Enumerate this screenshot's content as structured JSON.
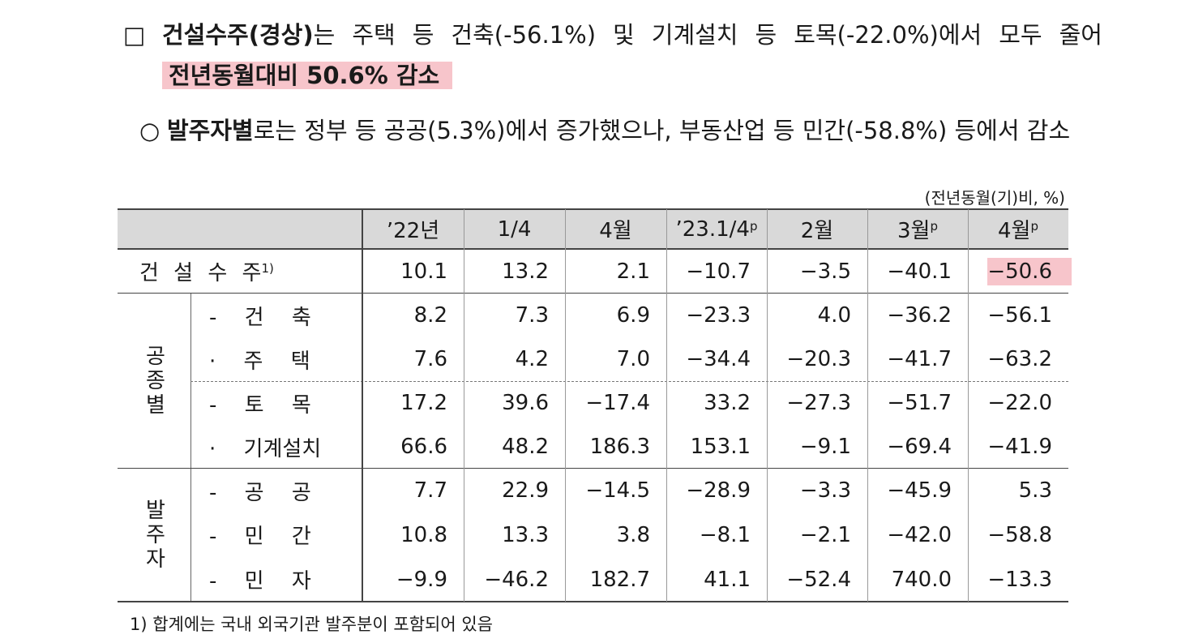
{
  "bullets": [
    {
      "marker": "□",
      "bold": "건설수주(경상)",
      "text": "는 주택 등 건축(-56.1%) 및 기계설치 등 토목(-22.0%)에서 모두 줄어 ",
      "highlight": "전년동월대비 50.6% 감소"
    },
    {
      "marker": "○",
      "bold": "발주자별",
      "text": "로는 정부 등 공공(5.3%)에서 증가했으나, 부동산업 등 민간(-58.8%) 등에서 감소"
    }
  ],
  "unit": "(전년동월(기)비, %)",
  "table": {
    "header": [
      {
        "text": "’22년"
      },
      {
        "text": "1/4"
      },
      {
        "text": "4월"
      },
      {
        "text": "’23.1/4",
        "sup": "p"
      },
      {
        "text": "2월"
      },
      {
        "text": "3월",
        "sup": "p"
      },
      {
        "text": "4월",
        "sup": "p"
      }
    ],
    "total": {
      "label": "건 설 수 주",
      "note": "1)",
      "values": [
        "10.1",
        "13.2",
        "2.1",
        "−10.7",
        "−3.5",
        "−40.1",
        "−50.6"
      ]
    },
    "groups": [
      {
        "name": "공종별",
        "rows": [
          {
            "label": "- 건 축",
            "values": [
              "8.2",
              "7.3",
              "6.9",
              "−23.3",
              "4.0",
              "−36.2",
              "−56.1"
            ]
          },
          {
            "label": "· 주 택",
            "values": [
              "7.6",
              "4.2",
              "7.0",
              "−34.4",
              "−20.3",
              "−41.7",
              "−63.2"
            ]
          },
          {
            "label": "- 토 목",
            "values": [
              "17.2",
              "39.6",
              "−17.4",
              "33.2",
              "−27.3",
              "−51.7",
              "−22.0"
            ]
          },
          {
            "label": "· 기계설치",
            "values": [
              "66.6",
              "48.2",
              "186.3",
              "153.1",
              "−9.1",
              "−69.4",
              "−41.9"
            ]
          }
        ]
      },
      {
        "name": "발주자",
        "rows": [
          {
            "label": "- 공 공",
            "values": [
              "7.7",
              "22.9",
              "−14.5",
              "−28.9",
              "−3.3",
              "−45.9",
              "5.3"
            ]
          },
          {
            "label": "- 민 간",
            "values": [
              "10.8",
              "13.3",
              "3.8",
              "−8.1",
              "−2.1",
              "−42.0",
              "−58.8"
            ]
          },
          {
            "label": "- 민 자",
            "values": [
              "−9.9",
              "−46.2",
              "182.7",
              "41.1",
              "−52.4",
              "740.0",
              "−13.3"
            ]
          }
        ]
      }
    ]
  },
  "footnote": "1) 합계에는 국내 외국기관 발주분이 포함되어 있음"
}
